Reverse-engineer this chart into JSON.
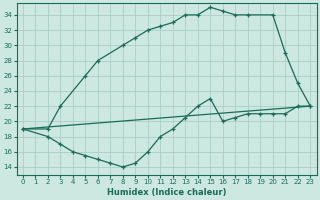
{
  "xlabel": "Humidex (Indice chaleur)",
  "bg_color": "#cce8e0",
  "line_color": "#1a6b5a",
  "grid_color": "#aacfc8",
  "xlim": [
    -0.5,
    23.5
  ],
  "ylim": [
    13.0,
    35.5
  ],
  "xticks": [
    0,
    1,
    2,
    3,
    4,
    5,
    6,
    7,
    8,
    9,
    10,
    11,
    12,
    13,
    14,
    15,
    16,
    17,
    18,
    19,
    20,
    21,
    22,
    23
  ],
  "yticks": [
    14,
    16,
    18,
    20,
    22,
    24,
    26,
    28,
    30,
    32,
    34
  ],
  "line1_x": [
    0,
    2,
    3,
    5,
    6,
    8,
    9,
    10,
    11,
    12,
    13,
    14,
    15,
    16,
    17,
    18,
    20,
    21,
    22,
    23
  ],
  "line1_y": [
    19,
    19,
    22,
    26,
    28,
    30,
    31,
    32,
    32.5,
    33,
    34,
    34,
    35,
    34.5,
    34,
    34,
    34,
    29,
    25,
    22
  ],
  "line2_x": [
    0,
    2,
    3,
    4,
    5,
    6,
    7,
    8,
    9,
    10,
    11,
    12,
    13,
    14,
    15,
    16,
    17,
    18,
    19,
    20,
    21,
    22,
    23
  ],
  "line2_y": [
    19,
    18,
    17,
    16,
    15.5,
    15,
    14.5,
    14,
    14.5,
    16,
    18,
    19,
    20.5,
    22,
    23,
    20,
    20.5,
    21,
    21,
    21,
    21,
    22,
    22
  ],
  "line3_x": [
    0,
    23
  ],
  "line3_y": [
    19,
    22
  ]
}
